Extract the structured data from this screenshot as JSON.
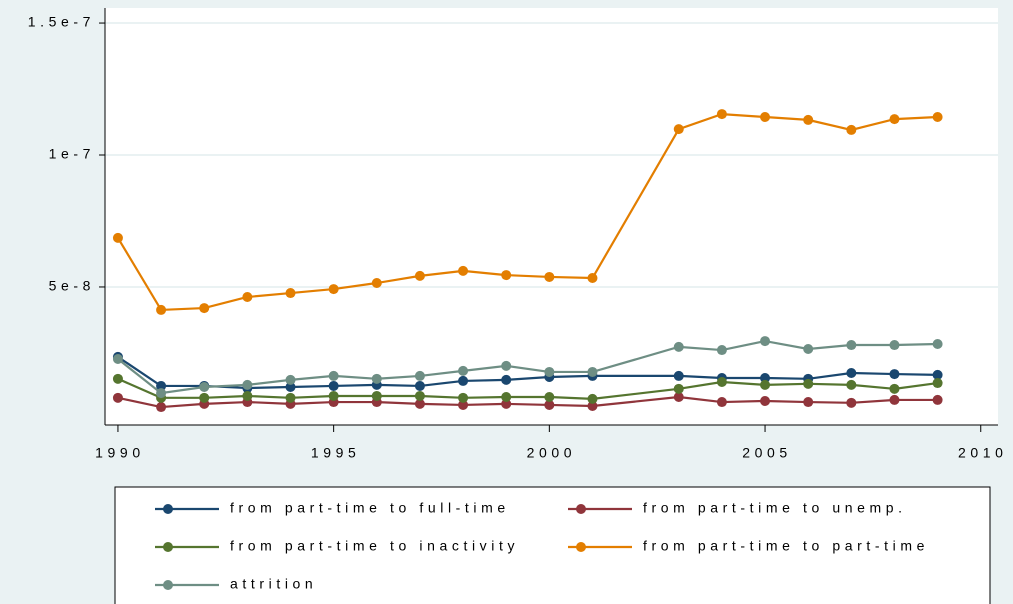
{
  "chart_data": {
    "type": "line",
    "x": [
      1990,
      1991,
      1992,
      1993,
      1994,
      1995,
      1996,
      1997,
      1998,
      1999,
      2000,
      2001,
      2003,
      2004,
      2005,
      2006,
      2007,
      2008,
      2009
    ],
    "xlim": [
      1989.7,
      2010.4
    ],
    "xticks": [
      1990,
      1995,
      2000,
      2005,
      2010
    ],
    "ylim": [
      -2.3e-09,
      1.557e-07
    ],
    "yticks": [
      {
        "value": 5e-08,
        "label": "5e-8"
      },
      {
        "value": 1e-07,
        "label": "1e-7"
      },
      {
        "value": 1.5e-07,
        "label": "1.5e-7"
      }
    ],
    "grid": true,
    "legend": "bottom",
    "series": [
      {
        "name": "from part-time to full-time",
        "color": "#1a476f",
        "values": [
          2.35e-08,
          1.25e-08,
          1.25e-08,
          1.17e-08,
          1.21e-08,
          1.25e-08,
          1.29e-08,
          1.25e-08,
          1.44e-08,
          1.48e-08,
          1.59e-08,
          1.63e-08,
          1.63e-08,
          1.55e-08,
          1.55e-08,
          1.52e-08,
          1.74e-08,
          1.7e-08,
          1.67e-08
        ]
      },
      {
        "name": "from part-time to unemp.",
        "color": "#90353b",
        "values": [
          8e-09,
          4.5e-09,
          5.7e-09,
          6.4e-09,
          5.7e-09,
          6.4e-09,
          6.4e-09,
          5.7e-09,
          5.3e-09,
          5.7e-09,
          5.3e-09,
          4.9e-09,
          8.3e-09,
          6.4e-09,
          6.8e-09,
          6.4e-09,
          6.1e-09,
          7.2e-09,
          7.2e-09
        ]
      },
      {
        "name": "from part-time to inactivity",
        "color": "#55752f",
        "values": [
          1.52e-08,
          8e-09,
          8e-09,
          8.7e-09,
          8e-09,
          8.7e-09,
          8.7e-09,
          8.7e-09,
          8e-09,
          8.3e-09,
          8.3e-09,
          7.6e-09,
          1.14e-08,
          1.4e-08,
          1.29e-08,
          1.33e-08,
          1.29e-08,
          1.14e-08,
          1.36e-08
        ]
      },
      {
        "name": "from part-time to part-time",
        "color": "#e37e00",
        "values": [
          6.86e-08,
          4.13e-08,
          4.2e-08,
          4.62e-08,
          4.77e-08,
          4.92e-08,
          5.15e-08,
          5.42e-08,
          5.61e-08,
          5.45e-08,
          5.38e-08,
          5.34e-08,
          1.098e-07,
          1.155e-07,
          1.144e-07,
          1.133e-07,
          1.095e-07,
          1.136e-07,
          1.144e-07
        ]
      },
      {
        "name": "attrition",
        "color": "#6e8e84",
        "values": [
          2.27e-08,
          9.8e-09,
          1.21e-08,
          1.29e-08,
          1.48e-08,
          1.63e-08,
          1.52e-08,
          1.63e-08,
          1.82e-08,
          2.01e-08,
          1.78e-08,
          1.78e-08,
          2.73e-08,
          2.61e-08,
          2.95e-08,
          2.65e-08,
          2.8e-08,
          2.8e-08,
          2.84e-08
        ]
      }
    ]
  }
}
